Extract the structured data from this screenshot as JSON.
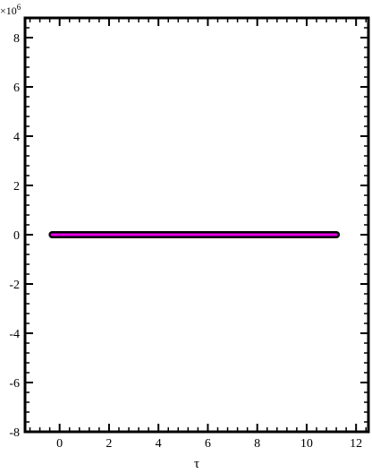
{
  "chart_data": {
    "type": "line",
    "title": "",
    "xlabel": "τ",
    "ylabel": "",
    "y_multiplier": "×10",
    "y_multiplier_exponent": "6",
    "xlim": [
      -1.4,
      12.5
    ],
    "ylim": [
      -8000000,
      8800000
    ],
    "x_ticks": [
      0,
      2,
      4,
      6,
      8,
      10,
      12
    ],
    "x_tick_labels": [
      "0",
      "2",
      "4",
      "6",
      "8",
      "10",
      "12"
    ],
    "y_ticks": [
      -8000000,
      -6000000,
      -4000000,
      -2000000,
      0,
      2000000,
      4000000,
      6000000,
      8000000
    ],
    "y_tick_labels": [
      "-8",
      "-6",
      "-4",
      "-2",
      "0",
      "2",
      "4",
      "6",
      "8"
    ],
    "grid": false,
    "series": [
      {
        "name": "",
        "x": [
          -0.3,
          11.2
        ],
        "y": [
          0,
          0
        ],
        "color": "#000000",
        "width": 8
      },
      {
        "name": "",
        "x": [
          -0.3,
          11.2
        ],
        "y": [
          0,
          0
        ],
        "color": "#e600e6",
        "width": 3
      }
    ]
  }
}
